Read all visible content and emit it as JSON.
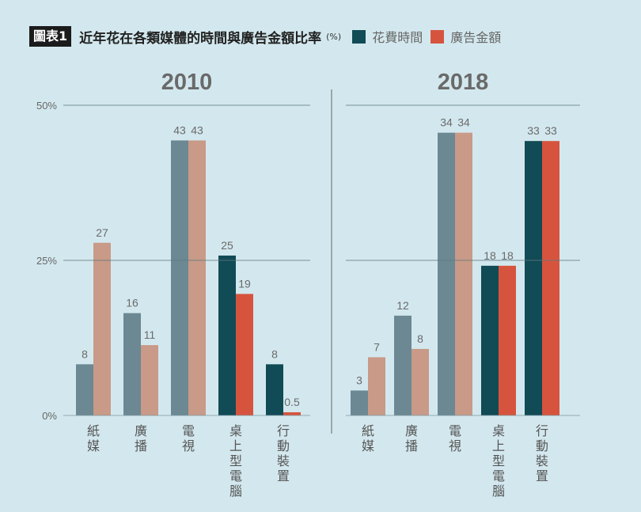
{
  "header": {
    "figure_label": "圖表1",
    "title": "近年花在各類媒體的時間與廣告金額比率",
    "unit": "(%)",
    "legend": [
      {
        "label": "花費時間",
        "color": "#114b55"
      },
      {
        "label": "廣告金額",
        "color": "#d6543e"
      }
    ]
  },
  "chart_data": {
    "type": "bar",
    "title": "近年花在各類媒體的時間與廣告金額比率 (%)",
    "yticks": [
      {
        "value": 0,
        "label": "0%"
      },
      {
        "value": 25,
        "label": "25%"
      },
      {
        "value": 50,
        "label": "50%"
      }
    ],
    "ylim": [
      0,
      50
    ],
    "grid": true,
    "legend_position": "top-right",
    "series_names": [
      "花費時間",
      "廣告金額"
    ],
    "colors": {
      "time_muted": "#6b8893",
      "ad_muted": "#c89a87",
      "time": "#114b55",
      "ad": "#d6543e"
    },
    "panels": [
      {
        "year": "2010",
        "bar_scale_max": 48.5,
        "categories": [
          "紙媒",
          "廣播",
          "電視",
          "桌上型電腦",
          "行動裝置"
        ],
        "highlighted": [
          false,
          false,
          false,
          true,
          true
        ],
        "series": [
          {
            "name": "花費時間",
            "values": [
              8,
              16,
              43,
              25,
              8
            ],
            "labels": [
              "8",
              "16",
              "43",
              "25",
              "8"
            ]
          },
          {
            "name": "廣告金額",
            "values": [
              27,
              11,
              43,
              19,
              0.5
            ],
            "labels": [
              "27",
              "11",
              "43",
              "19",
              "0.5"
            ]
          }
        ]
      },
      {
        "year": "2018",
        "bar_scale_max": 37.3,
        "categories": [
          "紙媒",
          "廣播",
          "電視",
          "桌上型電腦",
          "行動裝置"
        ],
        "highlighted": [
          false,
          false,
          false,
          true,
          true
        ],
        "series": [
          {
            "name": "花費時間",
            "values": [
              3,
              12,
              34,
              18,
              33
            ],
            "labels": [
              "3",
              "12",
              "34",
              "18",
              "33"
            ]
          },
          {
            "name": "廣告金額",
            "values": [
              7,
              8,
              34,
              18,
              33
            ],
            "labels": [
              "7",
              "8",
              "34",
              "18",
              "33"
            ]
          }
        ]
      }
    ]
  }
}
